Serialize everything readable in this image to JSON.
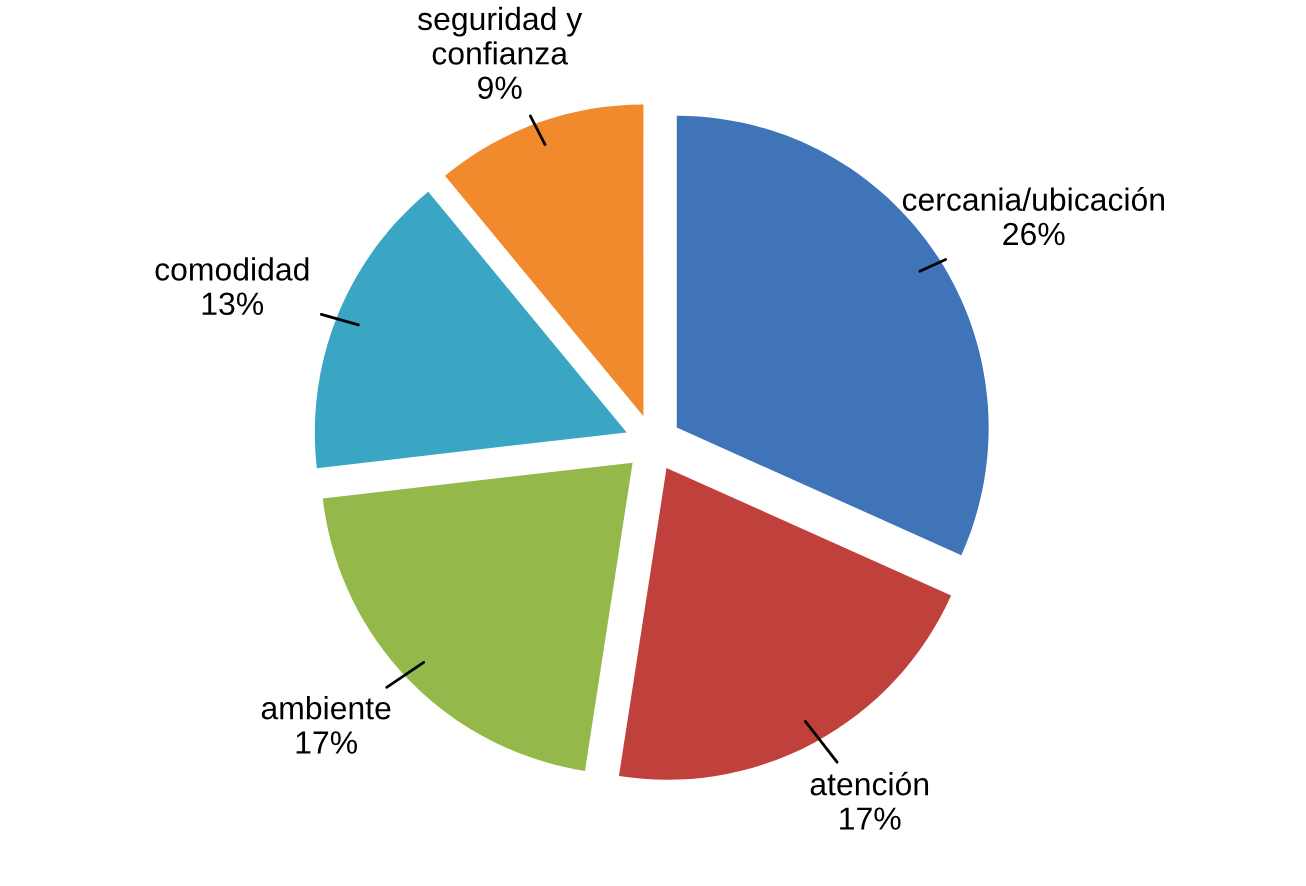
{
  "chart_data": {
    "type": "pie",
    "categories": [
      "cercania/ubicación",
      "atención",
      "ambiente",
      "comodidad",
      "seguridad y\nconfianza"
    ],
    "values": [
      26,
      17,
      17,
      13,
      9
    ],
    "value_labels": [
      "26%",
      "17%",
      "17%",
      "13%",
      "9%"
    ],
    "colors": [
      "#3f74b8",
      "#c0403c",
      "#94b94a",
      "#3aa6c4",
      "#f08a2c"
    ]
  }
}
